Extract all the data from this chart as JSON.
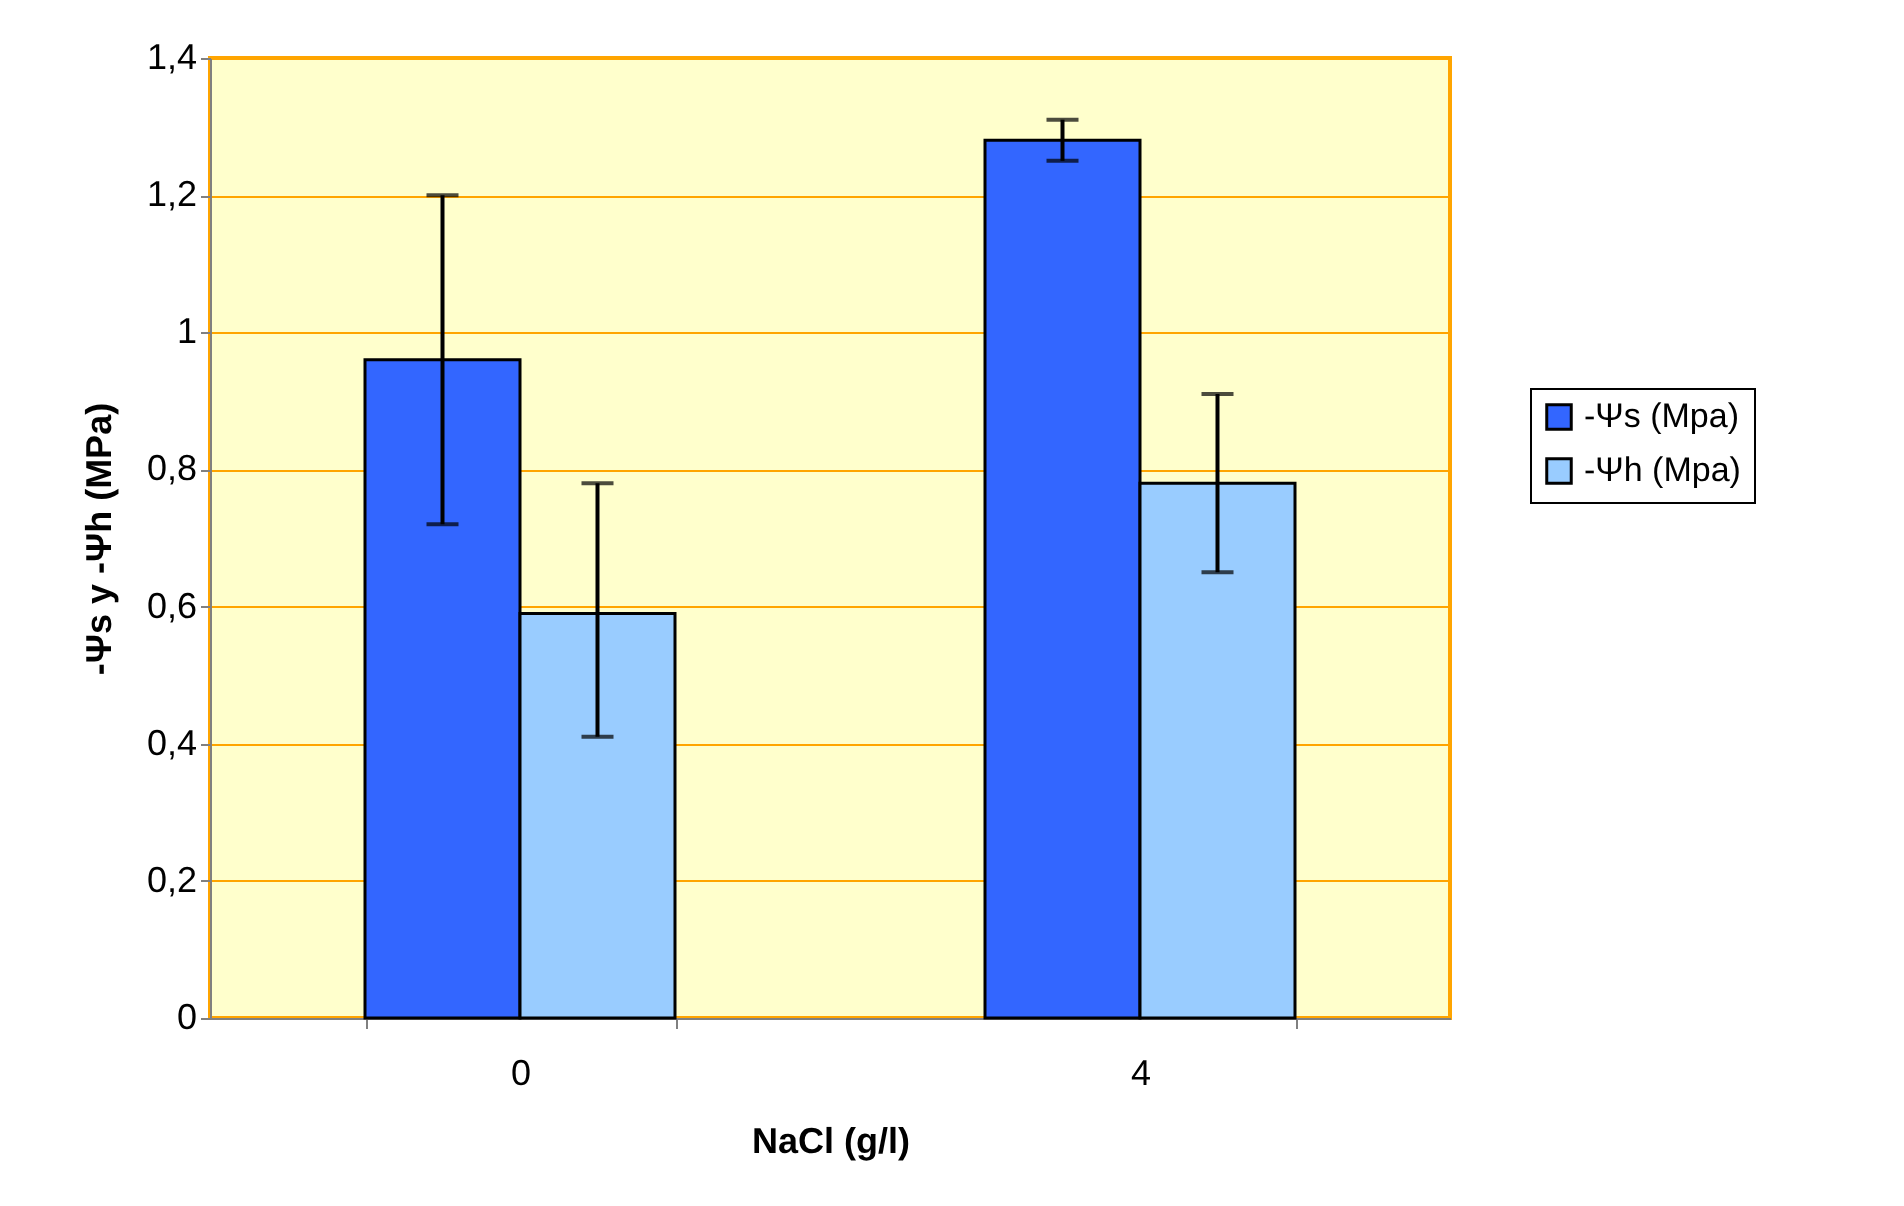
{
  "chart_data": {
    "type": "bar",
    "xlabel": "NaCl (g/l)",
    "ylabel": "-Ψs y -Ψh (MPa)",
    "categories": [
      "0",
      "4"
    ],
    "series": [
      {
        "name": "-Ψs (Mpa)",
        "color": "#3366ff",
        "values": [
          0.96,
          1.28
        ],
        "errors": [
          [
            0.72,
            1.2
          ],
          [
            1.25,
            1.31
          ]
        ]
      },
      {
        "name": "-Ψh (Mpa)",
        "color": "#99ccff",
        "values": [
          0.59,
          0.78
        ],
        "errors": [
          [
            0.41,
            0.78
          ],
          [
            0.65,
            0.91
          ]
        ]
      }
    ],
    "ylim": [
      0,
      1.4
    ],
    "yticks": [
      0,
      {
        "value": 0.2,
        "label": "0,2"
      },
      {
        "value": 0.4,
        "label": "0,4"
      },
      {
        "value": 0.6,
        "label": "0,6"
      },
      {
        "value": 0.8,
        "label": "0,8"
      },
      1,
      {
        "value": 1.2,
        "label": "1,2"
      },
      {
        "value": 1.4,
        "label": "1,4"
      }
    ],
    "grid": "y",
    "legend": "right"
  }
}
